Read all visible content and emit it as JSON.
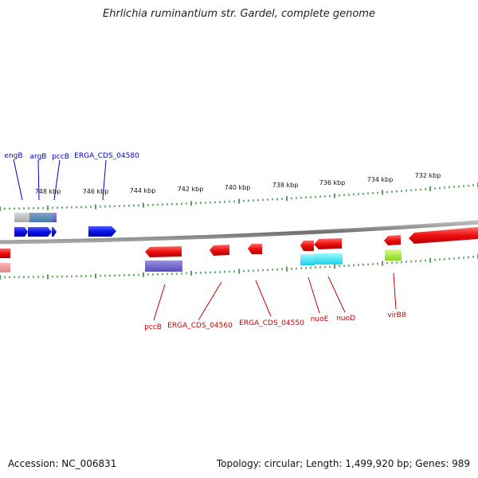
{
  "title": "Ehrlichia ruminantium str. Gardel, complete genome",
  "footer": {
    "accession": "Accession: NC_006831",
    "summary": "Topology: circular; Length: 1,499,920 bp; Genes: 989"
  },
  "colors": {
    "forward_gene": "#0000ee",
    "reverse_gene": "#ee0000",
    "forward_label": "#0000cc",
    "reverse_label": "#cc0000",
    "tick": "#2a8a2a",
    "backbone": "#888888",
    "tick_label": "#111111"
  },
  "scale": {
    "ticks": [
      {
        "label": "748 kbp"
      },
      {
        "label": "746 kbp"
      },
      {
        "label": "744 kbp"
      },
      {
        "label": "742 kbp"
      },
      {
        "label": "740 kbp"
      },
      {
        "label": "738 kbp"
      },
      {
        "label": "736 kbp"
      },
      {
        "label": "734 kbp"
      },
      {
        "label": "732 kbp"
      }
    ]
  },
  "forward_labels": [
    {
      "text": "engB"
    },
    {
      "text": "argB"
    },
    {
      "text": "pccB"
    },
    {
      "text": "ERGA_CDS_04580"
    }
  ],
  "reverse_labels": [
    {
      "text": "pccB"
    },
    {
      "text": "ERGA_CDS_04560"
    },
    {
      "text": "ERGA_CDS_04550"
    },
    {
      "text": "nuoE"
    },
    {
      "text": "nuoD"
    },
    {
      "text": "virB8"
    }
  ]
}
